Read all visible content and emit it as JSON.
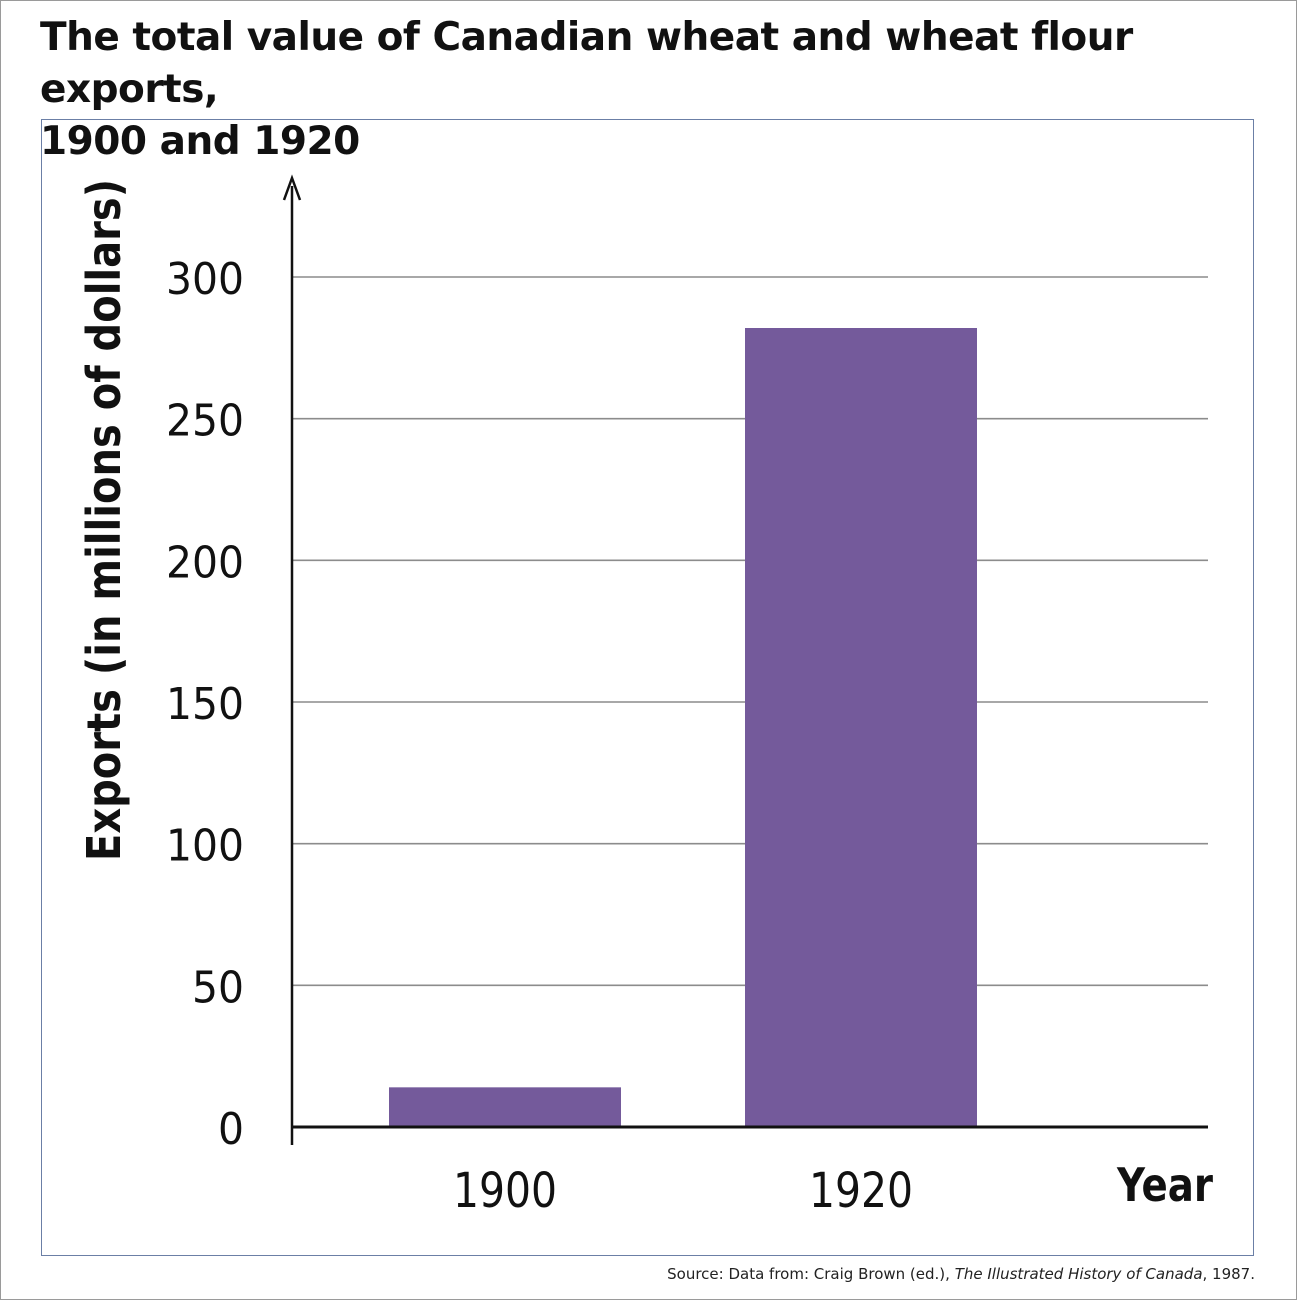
{
  "title_line1": "The total value of Canadian wheat and wheat flour exports,",
  "title_line2": "1900 and 1920",
  "source": {
    "prefix": "Source: Data from: Craig Brown (ed.), ",
    "book": "The Illustrated History of Canada",
    "suffix": ", 1987."
  },
  "colors": {
    "bar": "#745a9b",
    "grid": "#8c8c8c",
    "axis": "#111111"
  },
  "chart_data": {
    "type": "bar",
    "categories": [
      "1900",
      "1920"
    ],
    "values": [
      14,
      282
    ],
    "xlabel": "Year",
    "ylabel": "Exports (in millions of dollars)",
    "ylim": [
      0,
      300
    ],
    "yticks": [
      0,
      50,
      100,
      150,
      200,
      250,
      300
    ],
    "grid": true,
    "legend": "none"
  }
}
